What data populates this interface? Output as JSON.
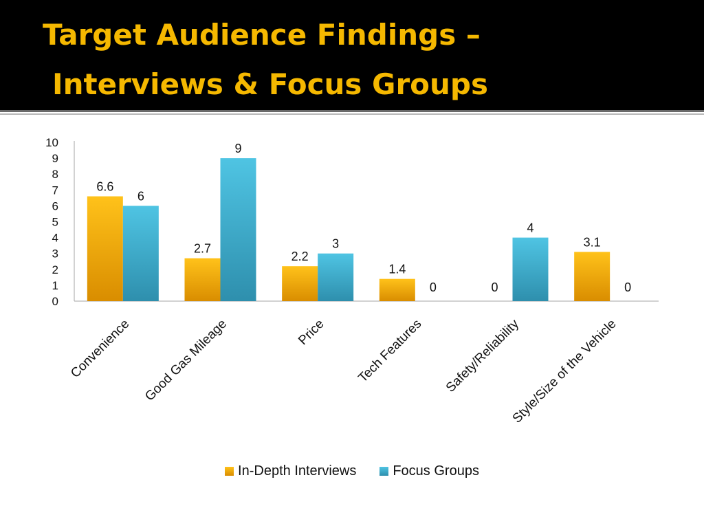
{
  "title": {
    "line1": "Target Audience Findings –",
    "line2": "Interviews & Focus Groups"
  },
  "colors": {
    "title": "#f5b800",
    "interviews": "#f5a800",
    "focus": "#3fb3d6"
  },
  "chart_data": {
    "type": "bar",
    "categories": [
      "Convenience",
      "Good Gas Mileage",
      "Price",
      "Tech Features",
      "Safety/Reliability",
      "Style/Size of the Vehicle"
    ],
    "series": [
      {
        "name": "In-Depth Interviews",
        "values": [
          6.6,
          2.7,
          2.2,
          1.4,
          null,
          3.1
        ],
        "labels": [
          "6.6",
          "2.7",
          "2.2",
          "1.4",
          "0",
          "3.1"
        ]
      },
      {
        "name": "Focus Groups",
        "values": [
          6,
          9,
          3,
          null,
          4,
          null
        ],
        "labels": [
          "6",
          "9",
          "3",
          "0",
          "4",
          "0"
        ]
      }
    ],
    "yticks": [
      "0",
      "1",
      "2",
      "3",
      "4",
      "5",
      "6",
      "7",
      "8",
      "9",
      "10"
    ],
    "ylim": [
      0,
      10
    ],
    "legend": "bottom"
  }
}
